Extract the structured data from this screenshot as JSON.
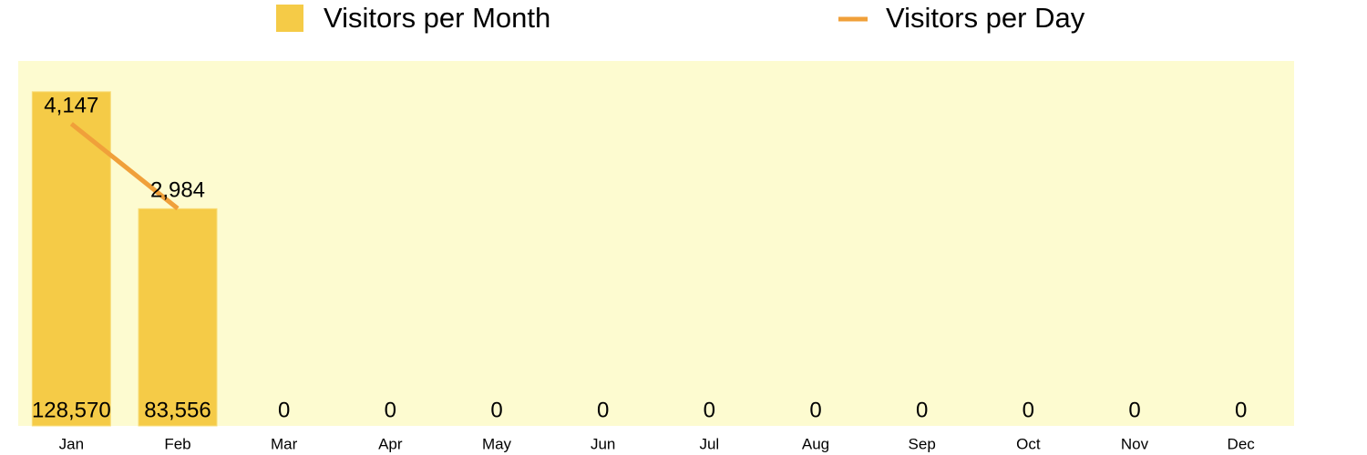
{
  "chart_data": {
    "type": "bar",
    "categories": [
      "Jan",
      "Feb",
      "Mar",
      "Apr",
      "May",
      "Jun",
      "Jul",
      "Aug",
      "Sep",
      "Oct",
      "Nov",
      "Dec"
    ],
    "series": [
      {
        "name": "Visitors per Month",
        "type": "bar",
        "color": "#f5cb47",
        "values": [
          128570,
          83556,
          0,
          0,
          0,
          0,
          0,
          0,
          0,
          0,
          0,
          0
        ],
        "value_labels": [
          "128,570",
          "83,556",
          "0",
          "0",
          "0",
          "0",
          "0",
          "0",
          "0",
          "0",
          "0",
          "0"
        ]
      },
      {
        "name": "Visitors per Day",
        "type": "line",
        "color": "#f0a03a",
        "values": [
          4147,
          2984,
          null,
          null,
          null,
          null,
          null,
          null,
          null,
          null,
          null,
          null
        ],
        "value_labels": [
          "4,147",
          "2,984",
          null,
          null,
          null,
          null,
          null,
          null,
          null,
          null,
          null,
          null
        ]
      }
    ],
    "background": "#fdfbd0"
  }
}
